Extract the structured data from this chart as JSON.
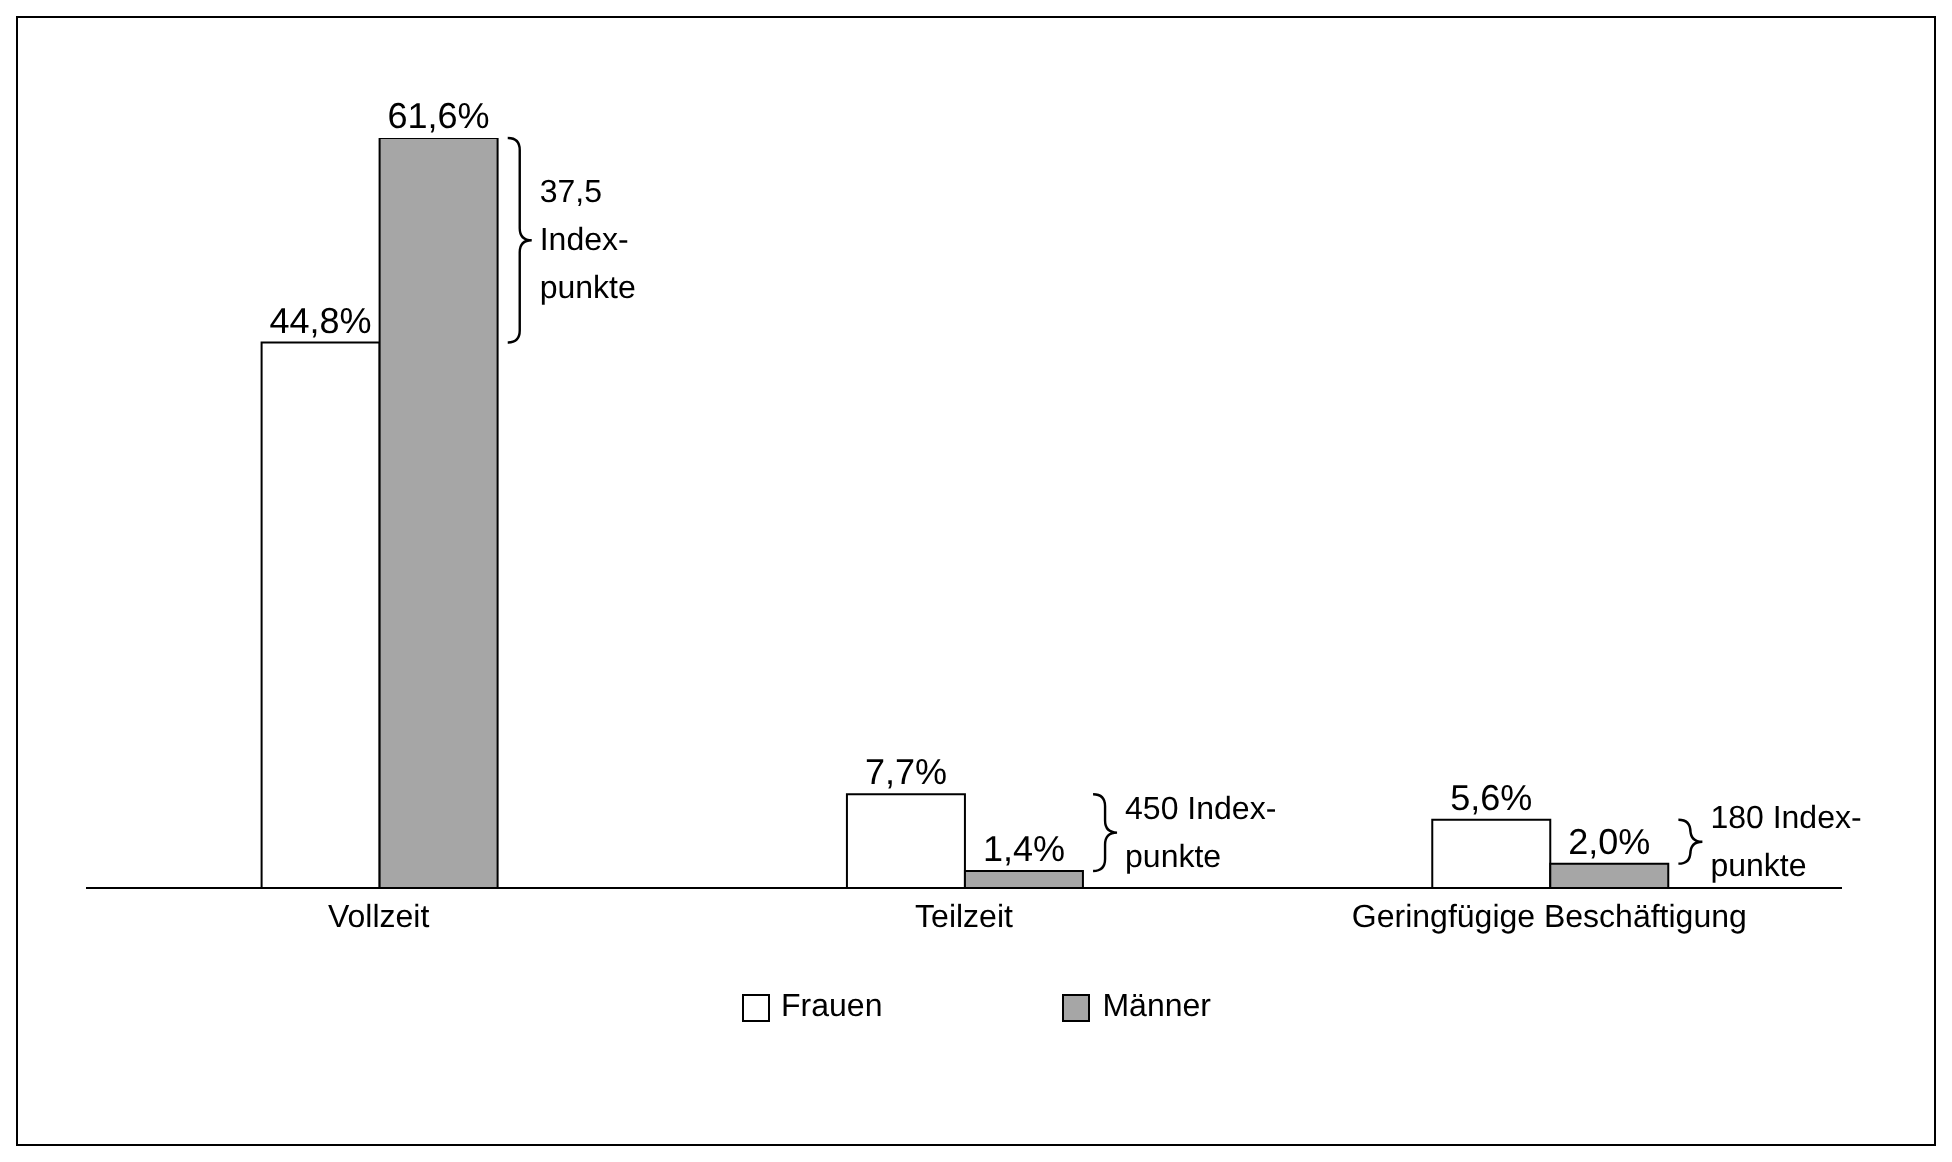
{
  "chart_data": {
    "type": "bar",
    "categories": [
      "Vollzeit",
      "Teilzeit",
      "Geringfügige Beschäftigung"
    ],
    "series": [
      {
        "name": "Frauen",
        "color": "#ffffff",
        "values": [
          44.8,
          7.7,
          5.6
        ],
        "value_labels": [
          "44,8%",
          "7,7%",
          "5,6%"
        ]
      },
      {
        "name": "Männer",
        "color": "#a6a6a6",
        "values": [
          61.6,
          1.4,
          2.0
        ],
        "value_labels": [
          "61,6%",
          "1,4%",
          "2,0%"
        ]
      }
    ],
    "annotations": [
      "37,5\nIndex-\npunkte",
      "450 Index-\npunkte",
      "180 Index-\npunkte"
    ],
    "legend": "bottom",
    "grid": false
  }
}
